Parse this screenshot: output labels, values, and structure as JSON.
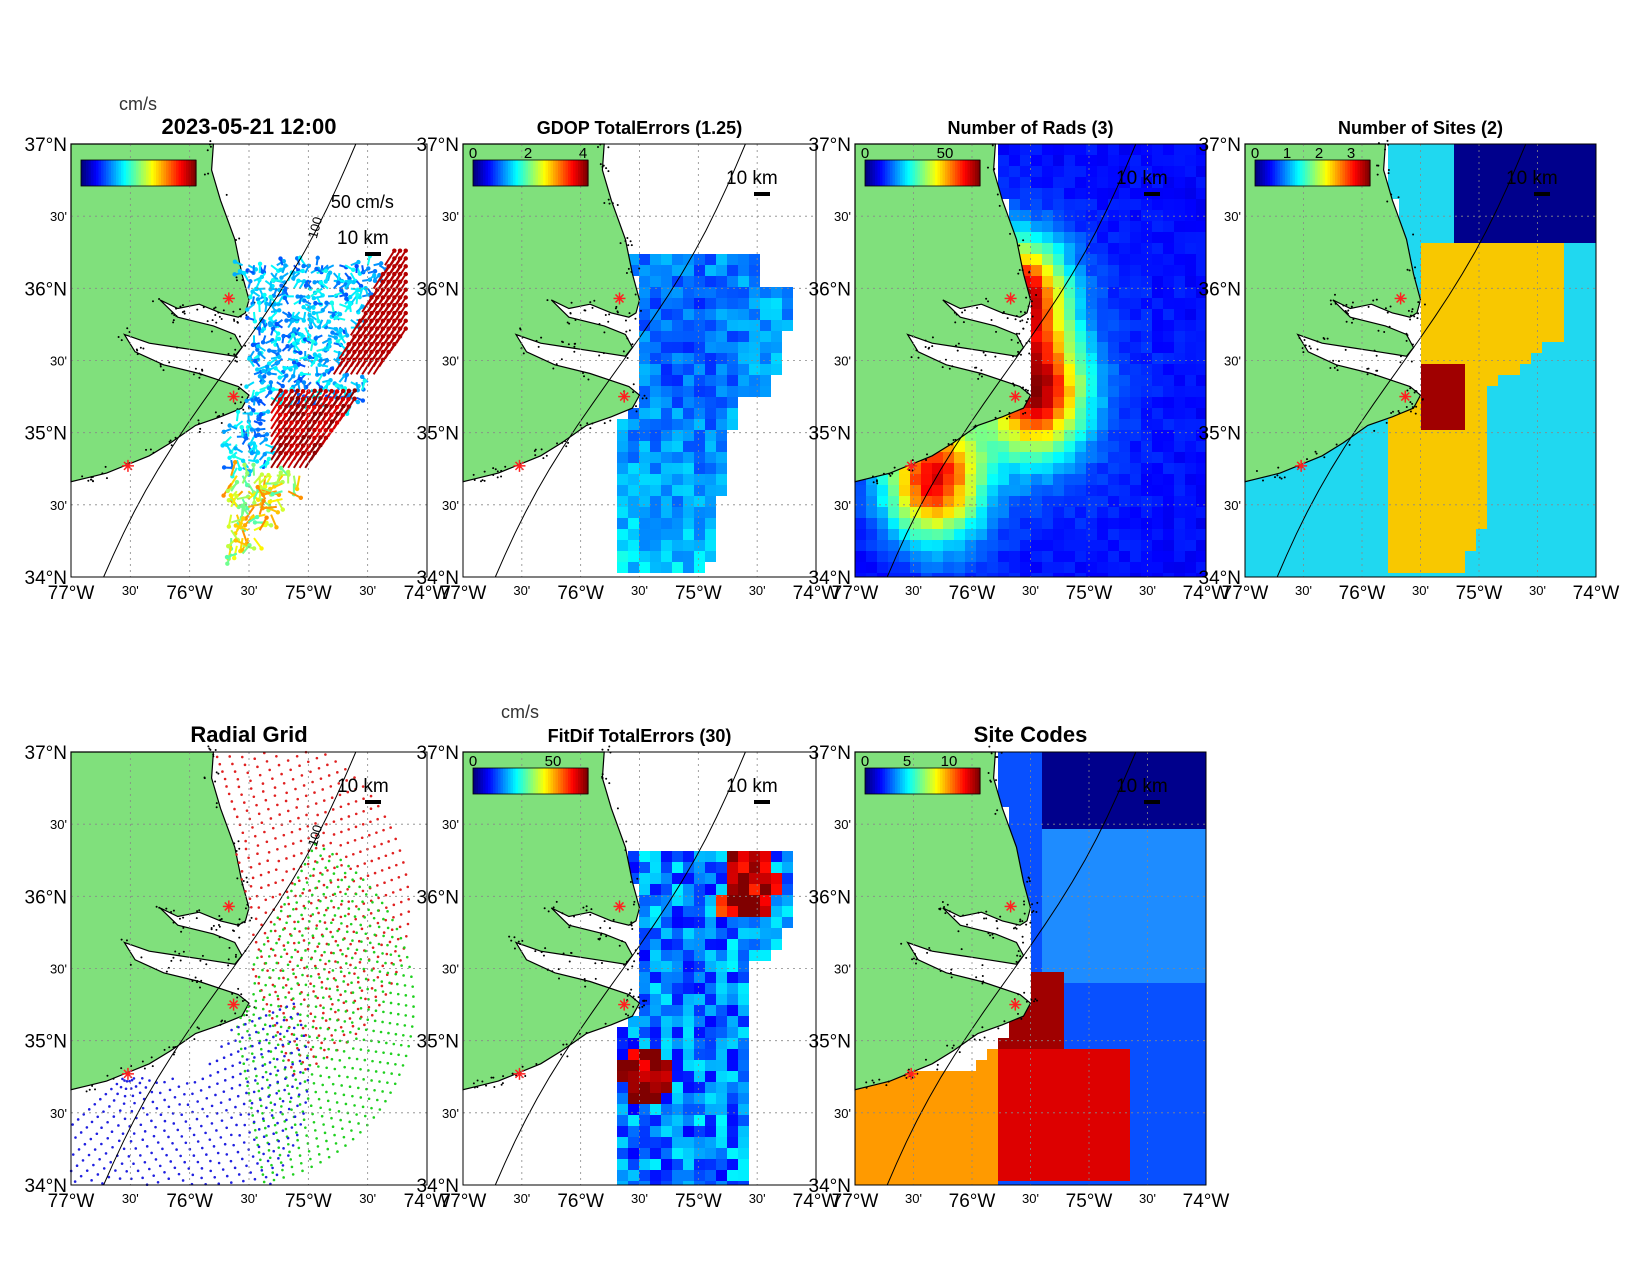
{
  "panels": [
    {
      "id": "currents",
      "title": "2023-05-21 12:00",
      "unit_label": "cm/s",
      "cbar_ticks": [],
      "scale_arrow_label": "50 cm/s",
      "scale_bar_label": "10 km",
      "contour_label": "100",
      "kind": "currents"
    },
    {
      "id": "gdop",
      "title": "GDOP TotalErrors (1.25)",
      "unit_label": "",
      "cbar_ticks": [
        "0",
        "2",
        "4"
      ],
      "scale_bar_label": "10 km",
      "contour_label": "1.25",
      "kind": "gdop"
    },
    {
      "id": "nrads",
      "title": "Number of Rads (3)",
      "unit_label": "",
      "cbar_ticks": [
        "0",
        "50"
      ],
      "scale_bar_label": "10 km",
      "contour_label": "3",
      "kind": "nrads"
    },
    {
      "id": "nsites",
      "title": "Number of Sites (2)",
      "unit_label": "",
      "cbar_ticks": [
        "0",
        "1",
        "2",
        "3"
      ],
      "scale_bar_label": "10 km",
      "contour_label": "2",
      "kind": "nsites"
    },
    {
      "id": "radial",
      "title": "Radial Grid",
      "unit_label": "",
      "cbar_ticks": [],
      "scale_bar_label": "10 km",
      "contour_label": "100",
      "kind": "radial"
    },
    {
      "id": "fitdif",
      "title": "FitDif TotalErrors (30)",
      "unit_label": "cm/s",
      "cbar_ticks": [
        "0",
        "50"
      ],
      "scale_bar_label": "10 km",
      "contour_label": "30",
      "kind": "fitdif"
    },
    {
      "id": "sitecodes",
      "title": "Site Codes",
      "unit_label": "",
      "cbar_ticks": [
        "0",
        "5",
        "10"
      ],
      "scale_bar_label": "10 km",
      "contour_label": "",
      "kind": "sitecodes"
    }
  ],
  "axes": {
    "lat_labels": [
      "37°N",
      "30'",
      "36°N",
      "30'",
      "35°N",
      "30'",
      "34°N"
    ],
    "lon_labels": [
      "77°W",
      "30'",
      "76°W",
      "30'",
      "75°W",
      "30'",
      "74°W"
    ],
    "lat_range": [
      34,
      37
    ],
    "lon_range": [
      -77,
      -74
    ]
  },
  "sites": [
    {
      "lon": -75.67,
      "lat": 35.93
    },
    {
      "lon": -75.63,
      "lat": 35.25
    },
    {
      "lon": -76.52,
      "lat": 34.77
    }
  ],
  "colors": {
    "land": "#80e07c",
    "sea": "#ffffff",
    "site_marker": "#ff2020",
    "radial_site1": "#e02020",
    "radial_site2": "#20d020",
    "radial_site3": "#2020e0",
    "nsites_1": "#20d8f0",
    "nsites_2": "#f8c800",
    "nsites_3": "#a00000",
    "nsites_0": "#00008c"
  }
}
